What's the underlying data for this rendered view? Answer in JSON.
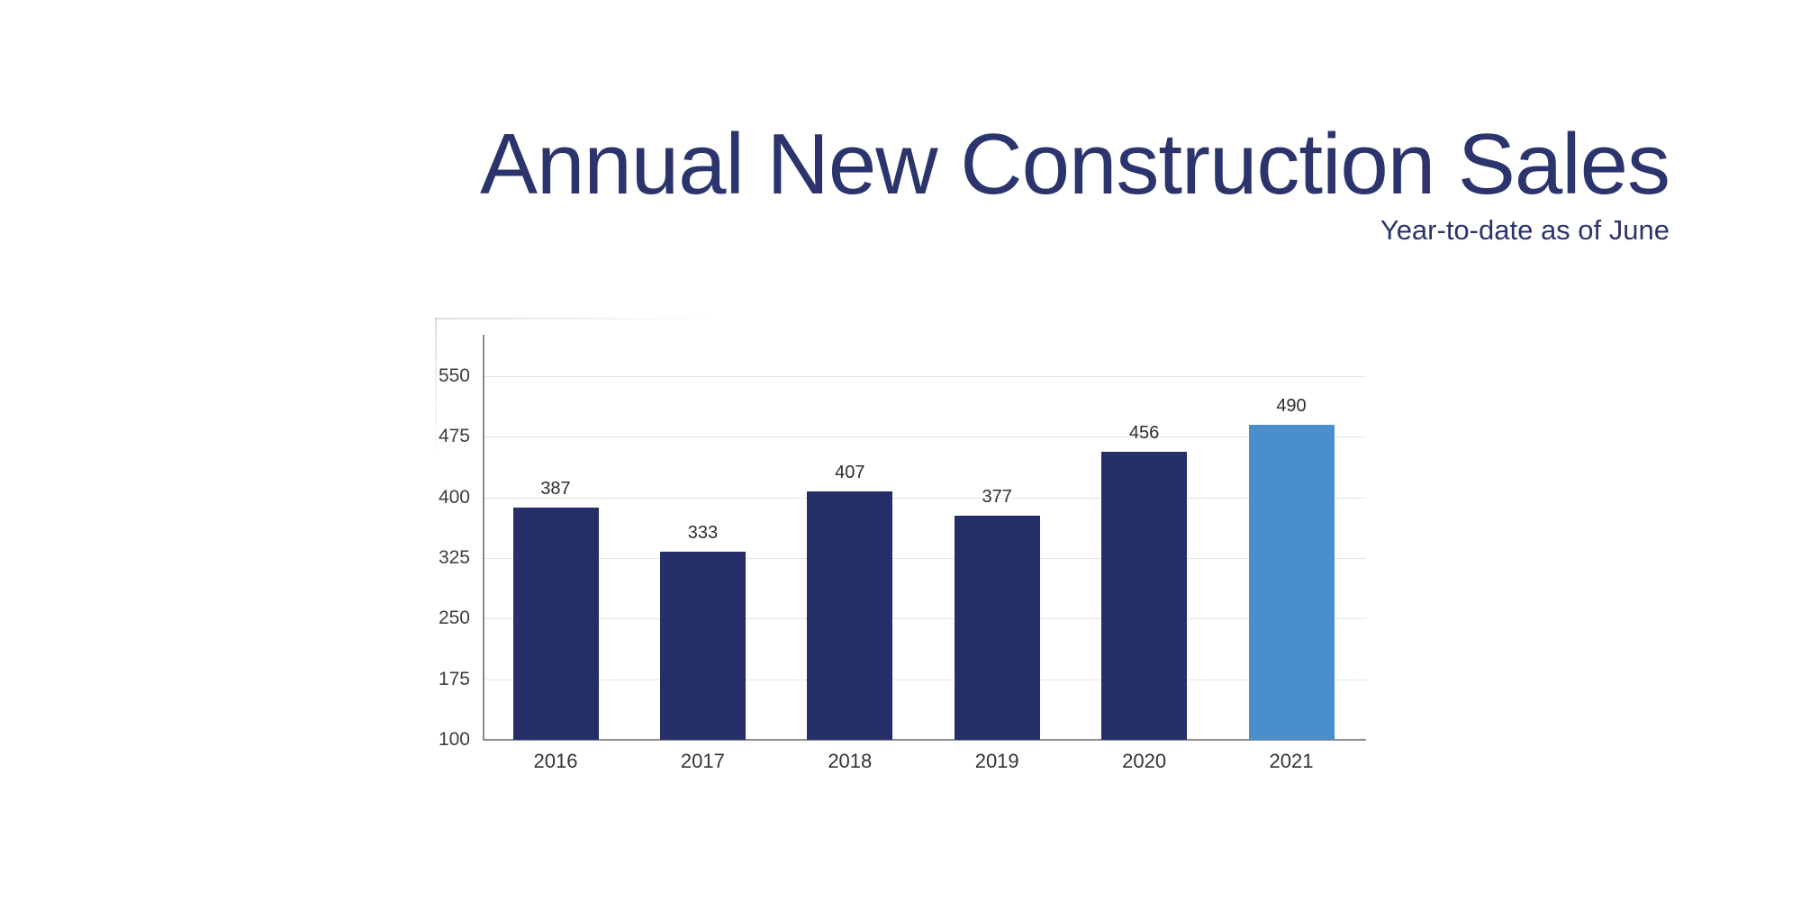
{
  "slide": {
    "title": "Annual New Construction Sales",
    "subtitle": "Year-to-date as of June"
  },
  "chart_data": {
    "type": "bar",
    "title": "Annual New Construction Sales",
    "subtitle": "Year-to-date as of June",
    "categories": [
      "2016",
      "2017",
      "2018",
      "2019",
      "2020",
      "2021"
    ],
    "values": [
      387,
      333,
      407,
      377,
      456,
      490
    ],
    "value_labels": [
      "387",
      "333",
      "407",
      "377",
      "456",
      "490"
    ],
    "xlabel": "",
    "ylabel": "",
    "ylim": [
      100,
      575
    ],
    "yticks": [
      550,
      475,
      400,
      325,
      250,
      175,
      100
    ],
    "grid": "horizontal",
    "legend": "none",
    "highlight_index": 5,
    "colors": {
      "bar_default": "#252e68",
      "bar_highlight": "#4b8ecd",
      "title_text": "#2b346c",
      "subtitle_text": "#2b346c",
      "gridline": "#e3e4e8",
      "axis_line": "#8c8c8c",
      "tick_label": "#3e3e40",
      "value_label": "#2e2e30"
    }
  }
}
